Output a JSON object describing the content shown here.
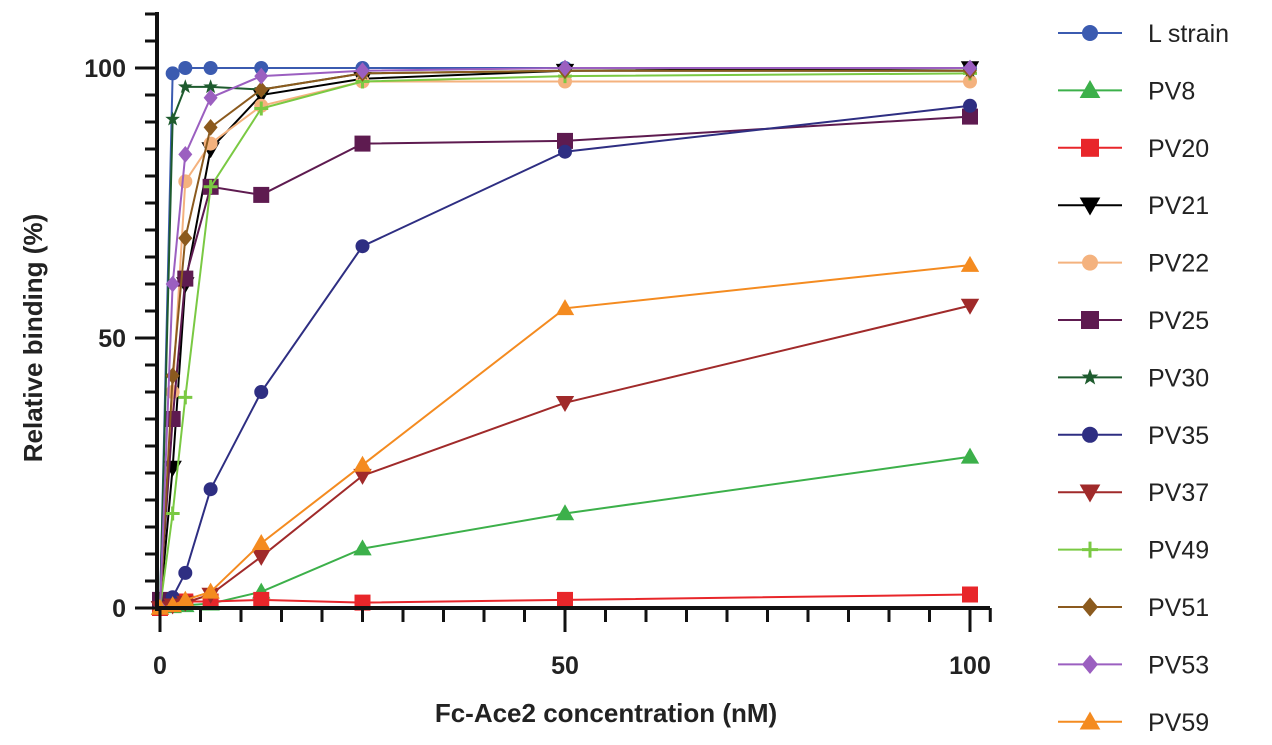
{
  "chart_data": {
    "type": "line",
    "xlabel": "Fc-Ace2 concentration (nM)",
    "ylabel": "Relative binding (%)",
    "xlim": [
      0,
      100
    ],
    "ylim": [
      0,
      100
    ],
    "xticks": [
      "0",
      "50",
      "100"
    ],
    "yticks": [
      "0",
      "50",
      "100"
    ],
    "grid": false,
    "legend": "right",
    "x": [
      0,
      1.5625,
      3.125,
      6.25,
      12.5,
      25,
      50,
      100
    ],
    "series": [
      {
        "name": "L strain",
        "color": "#3b5bb0",
        "marker": "circle",
        "values": [
          0,
          99,
          100,
          100,
          100,
          100,
          100,
          100
        ]
      },
      {
        "name": "PV8",
        "color": "#3cb04a",
        "marker": "triangle-up",
        "values": [
          0,
          0.3,
          0.5,
          0.8,
          3,
          11,
          17.5,
          28
        ]
      },
      {
        "name": "PV20",
        "color": "#e8262a",
        "marker": "square",
        "values": [
          0,
          1,
          1.2,
          1.2,
          1.5,
          1,
          1.5,
          2.5
        ]
      },
      {
        "name": "PV21",
        "color": "#000000",
        "marker": "triangle-down",
        "values": [
          0,
          26,
          60,
          85,
          95,
          98,
          99.5,
          100
        ]
      },
      {
        "name": "PV22",
        "color": "#f4b27e",
        "marker": "circle",
        "values": [
          0,
          40,
          79,
          86,
          93,
          97.5,
          97.5,
          97.5
        ]
      },
      {
        "name": "PV25",
        "color": "#5e1b50",
        "marker": "square",
        "values": [
          1.5,
          35,
          61,
          78,
          76.5,
          86,
          86.5,
          91
        ]
      },
      {
        "name": "PV30",
        "color": "#1e5b2e",
        "marker": "star",
        "values": [
          0,
          90.5,
          96.5,
          96.5,
          96,
          99,
          99.5,
          99.5
        ]
      },
      {
        "name": "PV35",
        "color": "#2e2e82",
        "marker": "circle",
        "values": [
          0,
          2,
          6.5,
          22,
          40,
          67,
          84.5,
          93
        ]
      },
      {
        "name": "PV37",
        "color": "#a02a2a",
        "marker": "triangle-down",
        "values": [
          0,
          0.5,
          1,
          2.5,
          9.5,
          24.5,
          38,
          56
        ]
      },
      {
        "name": "PV49",
        "color": "#7ac943",
        "marker": "plus",
        "values": [
          0,
          17.5,
          39,
          78,
          92.5,
          97.5,
          98.5,
          99
        ]
      },
      {
        "name": "PV51",
        "color": "#8b5a1e",
        "marker": "diamond",
        "values": [
          0,
          43,
          68.5,
          89,
          96,
          99,
          99.5,
          99.5
        ]
      },
      {
        "name": "PV53",
        "color": "#9b5fc0",
        "marker": "diamond",
        "values": [
          0,
          60,
          84,
          94.5,
          98.5,
          99.5,
          100,
          100
        ]
      },
      {
        "name": "PV59",
        "color": "#f48b20",
        "marker": "triangle-up",
        "values": [
          0,
          0.5,
          1.5,
          3,
          12,
          26.5,
          55.5,
          63.5
        ]
      }
    ]
  }
}
